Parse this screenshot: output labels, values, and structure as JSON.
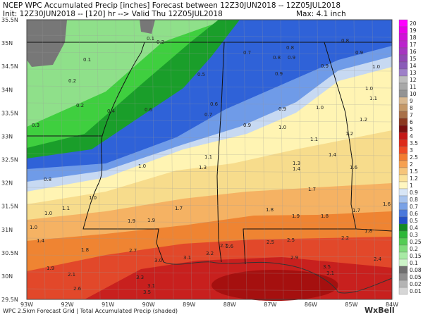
{
  "header": {
    "line1": "NCEP WPC Accumulated Precip [inches] Forecast between 12Z30JUN2018 -- 12Z05JUL2018",
    "line2": "Init: 12Z30JUN2018 -- [120] hr --> Valid Thu 12Z05JUL2018",
    "max": "Max: 4.1 inch"
  },
  "footer": {
    "source": "WPC 2.5km Forecast Grid | Total Accumulated Precip (shaded)",
    "brand": "WxBell"
  },
  "axes": {
    "lat_labels": [
      "35.5N",
      "35N",
      "34.5N",
      "34N",
      "33.5N",
      "33N",
      "32.5N",
      "32N",
      "31.5N",
      "31N",
      "30.5N",
      "30N",
      "29.5N"
    ],
    "lon_labels": [
      "93W",
      "92W",
      "91W",
      "90W",
      "89W",
      "88W",
      "87W",
      "86W",
      "85W",
      "84W"
    ]
  },
  "legend": {
    "labels": [
      "20",
      "19",
      "18",
      "17",
      "16",
      "15",
      "14",
      "13",
      "12",
      "11",
      "10",
      "9",
      "8",
      "7",
      "6",
      "5",
      "4",
      "3.5",
      "3",
      "2.5",
      "2",
      "1.5",
      "1.2",
      "1",
      "0.9",
      "0.8",
      "0.7",
      "0.6",
      "0.5",
      "0.4",
      "0.3",
      "0.25",
      "0.2",
      "0.15",
      "0.1",
      "0.08",
      "0.05",
      "0.02",
      "0.01"
    ]
  },
  "map": {
    "labels": [
      "0.1",
      "0.2",
      "0.1",
      "0.2",
      "0.2",
      "0.3",
      "0.4",
      "0.5",
      "0.6",
      "0.6",
      "0.7",
      "0.7",
      "0.8",
      "0.8",
      "0.9",
      "0.9",
      "0.9",
      "0.8",
      "0.9",
      "1.0",
      "1.0",
      "1.1",
      "0.9",
      "0.9",
      "1.0",
      "1.0",
      "1.2",
      "1.2",
      "1.1",
      "1.1",
      "1.3",
      "1.0",
      "1.4",
      "1.3",
      "1.4",
      "1.6",
      "1.7",
      "1.7",
      "1.8",
      "1.9",
      "1.8",
      "1.9",
      "1.7",
      "1.6",
      "1.0",
      "1.1",
      "1.0",
      "1.4",
      "1.8",
      "1.9",
      "2.7",
      "3.0",
      "3.1",
      "3.2",
      "2.7",
      "2.6",
      "2.5",
      "2.5",
      "2.9",
      "2.2",
      "3.5",
      "3.1",
      "2.4",
      "1.9",
      "2.1",
      "2.6",
      "3.3",
      "3.1",
      "3.5",
      "1.8",
      "0.8",
      "1.0"
    ]
  }
}
